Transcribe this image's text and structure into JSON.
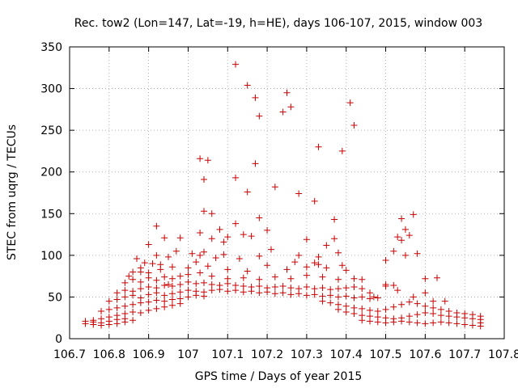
{
  "chart_data": {
    "type": "scatter",
    "title": "Rec. tow2 (Lon=147, Lat=-19, h=HE), days 106-107, 2015, window 003",
    "xlabel": "GPS time / Days of year 2015",
    "ylabel": "STEC from uqrg / TECUs",
    "xlim": [
      106.7,
      107.8
    ],
    "ylim": [
      0,
      350
    ],
    "xticks": [
      "106.7",
      "106.8",
      "106.9",
      "107",
      "107.1",
      "107.2",
      "107.3",
      "107.4",
      "107.5",
      "107.6",
      "107.7",
      "107.8"
    ],
    "yticks": [
      "0",
      "50",
      "100",
      "150",
      "200",
      "250",
      "300",
      "350"
    ],
    "grid": true,
    "marker": "+",
    "color": "#cc0000",
    "points": [
      [
        107.12,
        329
      ],
      [
        107.15,
        304
      ],
      [
        107.17,
        289
      ],
      [
        107.18,
        267
      ],
      [
        107.25,
        295
      ],
      [
        107.26,
        278
      ],
      [
        107.24,
        272
      ],
      [
        107.41,
        283
      ],
      [
        107.42,
        256
      ],
      [
        107.39,
        225
      ],
      [
        107.33,
        230
      ],
      [
        107.03,
        216
      ],
      [
        107.05,
        214
      ],
      [
        107.17,
        210
      ],
      [
        107.04,
        191
      ],
      [
        107.12,
        193
      ],
      [
        107.22,
        182
      ],
      [
        107.28,
        174
      ],
      [
        107.15,
        176
      ],
      [
        107.32,
        165
      ],
      [
        107.04,
        153
      ],
      [
        107.06,
        150
      ],
      [
        107.18,
        145
      ],
      [
        107.37,
        143
      ],
      [
        106.92,
        135
      ],
      [
        107.12,
        138
      ],
      [
        107.08,
        131
      ],
      [
        107.2,
        130
      ],
      [
        107.03,
        127
      ],
      [
        107.06,
        120
      ],
      [
        107.1,
        122
      ],
      [
        107.14,
        125
      ],
      [
        107.16,
        123
      ],
      [
        107.09,
        116
      ],
      [
        106.98,
        121
      ],
      [
        106.94,
        121
      ],
      [
        106.9,
        113
      ],
      [
        106.92,
        100
      ],
      [
        107.37,
        120
      ],
      [
        107.3,
        119
      ],
      [
        107.35,
        112
      ],
      [
        107.03,
        100
      ],
      [
        107.07,
        97
      ],
      [
        107.13,
        96
      ],
      [
        107.18,
        99
      ],
      [
        107.21,
        107
      ],
      [
        107.28,
        100
      ],
      [
        107.33,
        98
      ],
      [
        107.38,
        103
      ],
      [
        107.01,
        102
      ],
      [
        107.04,
        104
      ],
      [
        107.09,
        101
      ],
      [
        106.87,
        96
      ],
      [
        106.89,
        91
      ],
      [
        106.93,
        89
      ],
      [
        106.97,
        105
      ],
      [
        106.95,
        98
      ],
      [
        107.39,
        88
      ],
      [
        107.33,
        89
      ],
      [
        107.27,
        92
      ],
      [
        107.32,
        91
      ],
      [
        106.86,
        80
      ],
      [
        106.88,
        85
      ],
      [
        106.9,
        79
      ],
      [
        106.93,
        83
      ],
      [
        106.96,
        86
      ],
      [
        107.02,
        92
      ],
      [
        107.05,
        87
      ],
      [
        107.1,
        83
      ],
      [
        107.15,
        81
      ],
      [
        107.2,
        88
      ],
      [
        107.25,
        83
      ],
      [
        107.3,
        86
      ],
      [
        107.35,
        85
      ],
      [
        107.4,
        82
      ],
      [
        106.84,
        67
      ],
      [
        106.86,
        71
      ],
      [
        106.88,
        68
      ],
      [
        106.9,
        73
      ],
      [
        106.92,
        70
      ],
      [
        106.94,
        74
      ],
      [
        106.96,
        72
      ],
      [
        106.98,
        75
      ],
      [
        107.0,
        77
      ],
      [
        107.03,
        79
      ],
      [
        107.06,
        75
      ],
      [
        107.1,
        72
      ],
      [
        107.14,
        73
      ],
      [
        107.18,
        71
      ],
      [
        107.22,
        74
      ],
      [
        107.26,
        72
      ],
      [
        107.3,
        76
      ],
      [
        107.34,
        74
      ],
      [
        107.38,
        71
      ],
      [
        107.42,
        72
      ],
      [
        106.82,
        55
      ],
      [
        106.84,
        58
      ],
      [
        106.86,
        57
      ],
      [
        106.88,
        60
      ],
      [
        106.9,
        62
      ],
      [
        106.92,
        61
      ],
      [
        106.94,
        64
      ],
      [
        106.96,
        63
      ],
      [
        106.98,
        65
      ],
      [
        107.0,
        68
      ],
      [
        107.02,
        66
      ],
      [
        107.04,
        67
      ],
      [
        107.06,
        65
      ],
      [
        107.08,
        64
      ],
      [
        107.1,
        66
      ],
      [
        107.12,
        64
      ],
      [
        107.14,
        63
      ],
      [
        107.16,
        62
      ],
      [
        107.18,
        63
      ],
      [
        107.2,
        61
      ],
      [
        107.22,
        62
      ],
      [
        107.24,
        63
      ],
      [
        107.26,
        61
      ],
      [
        107.28,
        60
      ],
      [
        107.3,
        62
      ],
      [
        107.32,
        60
      ],
      [
        107.34,
        61
      ],
      [
        107.36,
        59
      ],
      [
        107.38,
        60
      ],
      [
        107.4,
        61
      ],
      [
        107.42,
        62
      ],
      [
        107.44,
        60
      ],
      [
        107.46,
        55
      ],
      [
        107.5,
        63
      ],
      [
        107.52,
        64
      ],
      [
        106.8,
        45
      ],
      [
        106.82,
        47
      ],
      [
        106.84,
        50
      ],
      [
        106.86,
        52
      ],
      [
        106.88,
        49
      ],
      [
        106.9,
        53
      ],
      [
        106.92,
        55
      ],
      [
        106.94,
        52
      ],
      [
        106.96,
        54
      ],
      [
        106.98,
        56
      ],
      [
        107.0,
        58
      ],
      [
        107.02,
        57
      ],
      [
        107.04,
        56
      ],
      [
        107.06,
        58
      ],
      [
        107.08,
        59
      ],
      [
        107.1,
        57
      ],
      [
        107.12,
        58
      ],
      [
        107.14,
        56
      ],
      [
        107.16,
        57
      ],
      [
        107.18,
        55
      ],
      [
        107.2,
        56
      ],
      [
        107.22,
        54
      ],
      [
        107.24,
        55
      ],
      [
        107.26,
        53
      ],
      [
        107.28,
        54
      ],
      [
        107.3,
        52
      ],
      [
        107.32,
        53
      ],
      [
        107.34,
        51
      ],
      [
        107.36,
        52
      ],
      [
        107.38,
        50
      ],
      [
        107.4,
        51
      ],
      [
        107.42,
        49
      ],
      [
        107.44,
        50
      ],
      [
        107.46,
        48
      ],
      [
        107.48,
        49
      ],
      [
        106.78,
        33
      ],
      [
        106.8,
        35
      ],
      [
        106.82,
        37
      ],
      [
        106.84,
        39
      ],
      [
        106.86,
        41
      ],
      [
        106.88,
        43
      ],
      [
        106.9,
        44
      ],
      [
        106.92,
        46
      ],
      [
        106.94,
        45
      ],
      [
        106.96,
        47
      ],
      [
        106.98,
        48
      ],
      [
        107.0,
        50
      ],
      [
        107.02,
        52
      ],
      [
        107.04,
        51
      ],
      [
        107.34,
        45
      ],
      [
        107.36,
        43
      ],
      [
        107.38,
        41
      ],
      [
        107.4,
        39
      ],
      [
        107.42,
        37
      ],
      [
        107.44,
        36
      ],
      [
        107.46,
        34
      ],
      [
        107.48,
        33
      ],
      [
        107.5,
        35
      ],
      [
        107.52,
        38
      ],
      [
        107.54,
        41
      ],
      [
        107.56,
        44
      ],
      [
        107.58,
        42
      ],
      [
        107.6,
        39
      ],
      [
        107.62,
        37
      ],
      [
        107.64,
        35
      ],
      [
        107.66,
        33
      ],
      [
        107.68,
        31
      ],
      [
        107.7,
        30
      ],
      [
        107.72,
        29
      ],
      [
        106.76,
        22
      ],
      [
        106.78,
        24
      ],
      [
        106.8,
        26
      ],
      [
        106.82,
        28
      ],
      [
        106.84,
        30
      ],
      [
        106.86,
        32
      ],
      [
        106.88,
        31
      ],
      [
        106.9,
        34
      ],
      [
        106.92,
        36
      ],
      [
        106.94,
        38
      ],
      [
        106.96,
        40
      ],
      [
        106.98,
        42
      ],
      [
        107.38,
        35
      ],
      [
        107.4,
        32
      ],
      [
        107.42,
        30
      ],
      [
        107.44,
        28
      ],
      [
        107.46,
        27
      ],
      [
        107.48,
        26
      ],
      [
        107.5,
        25
      ],
      [
        107.52,
        24
      ],
      [
        107.54,
        25
      ],
      [
        107.56,
        27
      ],
      [
        107.58,
        29
      ],
      [
        107.6,
        31
      ],
      [
        107.62,
        30
      ],
      [
        107.64,
        28
      ],
      [
        107.66,
        27
      ],
      [
        107.68,
        26
      ],
      [
        107.7,
        25
      ],
      [
        107.72,
        24
      ],
      [
        107.74,
        23
      ],
      [
        106.74,
        18
      ],
      [
        106.76,
        17
      ],
      [
        106.78,
        16
      ],
      [
        106.8,
        17
      ],
      [
        106.82,
        18
      ],
      [
        106.84,
        20
      ],
      [
        106.86,
        22
      ],
      [
        106.74,
        21
      ],
      [
        106.76,
        20
      ],
      [
        106.78,
        19
      ],
      [
        106.8,
        21
      ],
      [
        106.82,
        23
      ],
      [
        106.84,
        24
      ],
      [
        107.44,
        22
      ],
      [
        107.46,
        21
      ],
      [
        107.48,
        20
      ],
      [
        107.5,
        19
      ],
      [
        107.52,
        20
      ],
      [
        107.54,
        21
      ],
      [
        107.56,
        20
      ],
      [
        107.58,
        19
      ],
      [
        107.6,
        18
      ],
      [
        107.62,
        19
      ],
      [
        107.64,
        20
      ],
      [
        107.66,
        19
      ],
      [
        107.68,
        18
      ],
      [
        107.7,
        17
      ],
      [
        107.72,
        16
      ],
      [
        107.74,
        15
      ],
      [
        107.74,
        19
      ],
      [
        107.74,
        27
      ],
      [
        107.5,
        94
      ],
      [
        107.52,
        105
      ],
      [
        107.54,
        118
      ],
      [
        107.53,
        122
      ],
      [
        107.55,
        131
      ],
      [
        107.56,
        124
      ],
      [
        107.54,
        144
      ],
      [
        107.57,
        149
      ],
      [
        107.58,
        102
      ],
      [
        107.55,
        100
      ],
      [
        107.6,
        72
      ],
      [
        107.63,
        73
      ],
      [
        107.53,
        58
      ],
      [
        107.62,
        45
      ],
      [
        107.65,
        45
      ],
      [
        107.57,
        50
      ],
      [
        107.6,
        55
      ],
      [
        107.44,
        71
      ],
      [
        107.47,
        50
      ],
      [
        107.5,
        65
      ],
      [
        106.88,
        80
      ],
      [
        106.91,
        90
      ],
      [
        106.85,
        75
      ],
      [
        106.95,
        65
      ],
      [
        107.0,
        85
      ]
    ]
  }
}
